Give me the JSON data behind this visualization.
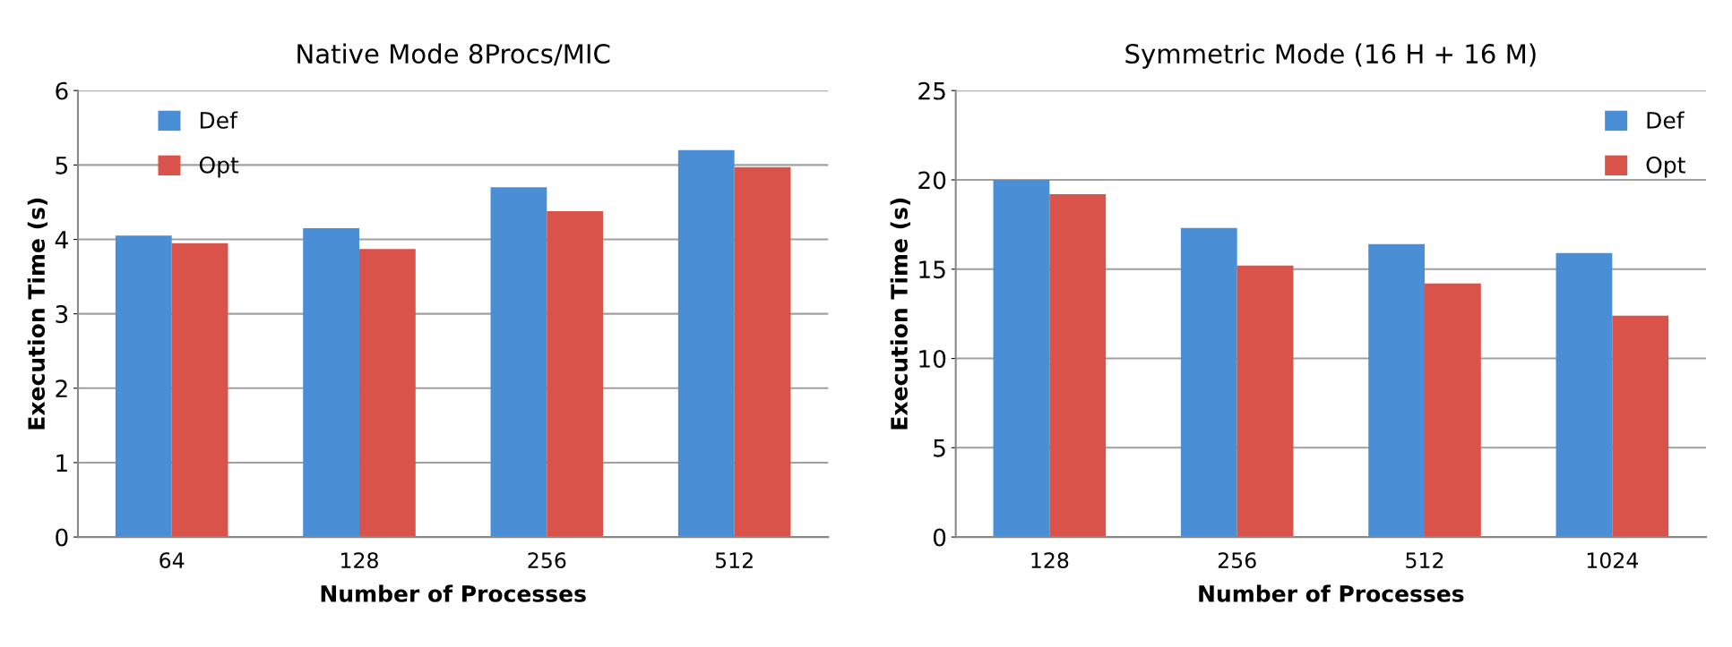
{
  "chart_data": [
    {
      "type": "bar",
      "title": "Native Mode 8Procs/MIC",
      "xlabel": "Number of Processes",
      "ylabel": "Execution Time (s)",
      "categories": [
        "64",
        "128",
        "256",
        "512"
      ],
      "series": [
        {
          "name": "Def",
          "color": "#4a8fd6",
          "values": [
            4.05,
            4.15,
            4.7,
            5.2
          ]
        },
        {
          "name": "Opt",
          "color": "#d9534a",
          "values": [
            3.95,
            3.87,
            4.38,
            4.97
          ]
        }
      ],
      "ylim": [
        0,
        6
      ],
      "yticks": [
        0,
        1,
        2,
        3,
        4,
        5,
        6
      ],
      "grid": "y",
      "legend": "top left"
    },
    {
      "type": "bar",
      "title": "Symmetric Mode (16 H + 16 M)",
      "xlabel": "Number of Processes",
      "ylabel": "Execution Time (s)",
      "categories": [
        "128",
        "256",
        "512",
        "1024"
      ],
      "series": [
        {
          "name": "Def",
          "color": "#4a8fd6",
          "values": [
            20.0,
            17.3,
            16.4,
            15.9
          ]
        },
        {
          "name": "Opt",
          "color": "#d9534a",
          "values": [
            19.2,
            15.2,
            14.2,
            12.4
          ]
        }
      ],
      "ylim": [
        0,
        25
      ],
      "yticks": [
        0,
        5,
        10,
        15,
        20,
        25
      ],
      "grid": "y",
      "legend": "top right"
    }
  ]
}
